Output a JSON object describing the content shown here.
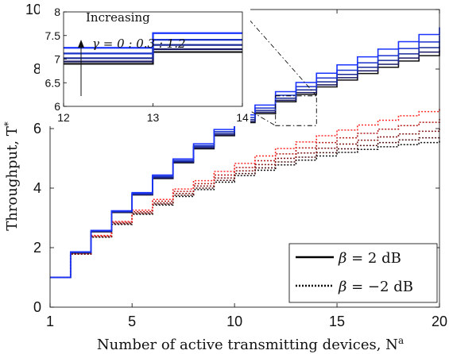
{
  "chart_data": {
    "type": "line",
    "step": true,
    "title": "",
    "xlabel": "Number of active transmitting devices, N",
    "xlabel_sup": "a",
    "ylabel": "Throughput, T",
    "ylabel_sup": "*",
    "xlim": [
      1,
      20
    ],
    "ylim": [
      0,
      10
    ],
    "xticks": [
      1,
      5,
      10,
      15,
      20
    ],
    "yticks": [
      0,
      2,
      4,
      6,
      8,
      10
    ],
    "grid": false,
    "x": [
      1,
      2,
      3,
      4,
      5,
      6,
      7,
      8,
      9,
      10,
      11,
      12,
      13,
      14,
      15,
      16,
      17,
      18,
      19,
      20
    ],
    "series": [
      {
        "group": "beta_2",
        "gamma": 0,
        "color": "#111111",
        "values": [
          1,
          1.82,
          2.53,
          3.18,
          3.77,
          4.32,
          4.85,
          5.32,
          5.76,
          6.2,
          6.5,
          6.9,
          7.15,
          7.4,
          7.63,
          7.85,
          8.06,
          8.27,
          8.45,
          8.62
        ]
      },
      {
        "group": "beta_2",
        "gamma": 0.3,
        "color": "#1a1a66",
        "values": [
          1,
          1.83,
          2.54,
          3.19,
          3.78,
          4.34,
          4.87,
          5.35,
          5.79,
          6.24,
          6.55,
          6.95,
          7.21,
          7.47,
          7.71,
          7.94,
          8.16,
          8.37,
          8.57,
          8.76
        ]
      },
      {
        "group": "beta_2",
        "gamma": 0.6,
        "color": "#1a2a99",
        "values": [
          1,
          1.84,
          2.55,
          3.21,
          3.8,
          4.37,
          4.9,
          5.39,
          5.84,
          6.3,
          6.61,
          7.02,
          7.3,
          7.57,
          7.82,
          8.06,
          8.29,
          8.51,
          8.72,
          8.93
        ]
      },
      {
        "group": "beta_2",
        "gamma": 0.9,
        "color": "#1a33cc",
        "values": [
          1,
          1.85,
          2.56,
          3.22,
          3.82,
          4.4,
          4.93,
          5.43,
          5.9,
          6.37,
          6.69,
          7.12,
          7.41,
          7.7,
          7.96,
          8.21,
          8.45,
          8.69,
          8.91,
          9.13
        ]
      },
      {
        "group": "beta_2",
        "gamma": 1.2,
        "color": "#1a33ff",
        "values": [
          1,
          1.86,
          2.58,
          3.24,
          3.85,
          4.44,
          4.98,
          5.49,
          5.97,
          6.46,
          6.79,
          7.24,
          7.55,
          7.86,
          8.14,
          8.41,
          8.67,
          8.92,
          9.16,
          9.4
        ]
      },
      {
        "group": "beta_-2",
        "gamma": 0,
        "color": "#111111",
        "values": [
          1,
          1.78,
          2.35,
          2.78,
          3.12,
          3.43,
          3.72,
          3.95,
          4.2,
          4.42,
          4.6,
          4.78,
          4.94,
          5.08,
          5.2,
          5.3,
          5.39,
          5.46,
          5.53,
          5.58
        ]
      },
      {
        "group": "beta_-2",
        "gamma": 0.3,
        "color": "#4d1111",
        "values": [
          1,
          1.78,
          2.36,
          2.8,
          3.14,
          3.46,
          3.76,
          4.0,
          4.26,
          4.49,
          4.68,
          4.88,
          5.04,
          5.19,
          5.32,
          5.43,
          5.53,
          5.62,
          5.69,
          5.75
        ]
      },
      {
        "group": "beta_-2",
        "gamma": 0.6,
        "color": "#801515",
        "values": [
          1,
          1.79,
          2.37,
          2.82,
          3.17,
          3.5,
          3.82,
          4.07,
          4.34,
          4.58,
          4.79,
          5.0,
          5.18,
          5.34,
          5.48,
          5.61,
          5.72,
          5.82,
          5.91,
          6.0
        ]
      },
      {
        "group": "beta_-2",
        "gamma": 0.9,
        "color": "#b31a1a",
        "values": [
          1,
          1.8,
          2.39,
          2.85,
          3.21,
          3.56,
          3.89,
          4.15,
          4.44,
          4.69,
          4.92,
          5.15,
          5.35,
          5.53,
          5.69,
          5.84,
          5.98,
          6.1,
          6.21,
          6.32
        ]
      },
      {
        "group": "beta_-2",
        "gamma": 1.2,
        "color": "#ff2a2a",
        "values": [
          1,
          1.81,
          2.41,
          2.88,
          3.26,
          3.62,
          3.97,
          4.25,
          4.56,
          4.83,
          5.08,
          5.33,
          5.55,
          5.76,
          5.95,
          6.12,
          6.28,
          6.43,
          6.57,
          6.7
        ]
      }
    ],
    "legend": {
      "placement": "bottom-right",
      "entries": [
        {
          "label_symbol": "β",
          "label_text": " = 2 dB",
          "style": "solid"
        },
        {
          "label_symbol": "β",
          "label_text": " = −2 dB",
          "style": "dotted"
        }
      ]
    },
    "inset": {
      "xlim": [
        12,
        14
      ],
      "ylim": [
        6,
        8
      ],
      "xticks": [
        12,
        13,
        14
      ],
      "yticks": [
        6,
        6.5,
        7,
        7.5,
        8
      ],
      "annotation_line1": "Increasing",
      "annotation_line2": "γ = 0 : 0.3 : 1.2",
      "zoom_region": {
        "x": [
          12,
          14
        ],
        "y": [
          6.1,
          7.1
        ]
      }
    }
  }
}
